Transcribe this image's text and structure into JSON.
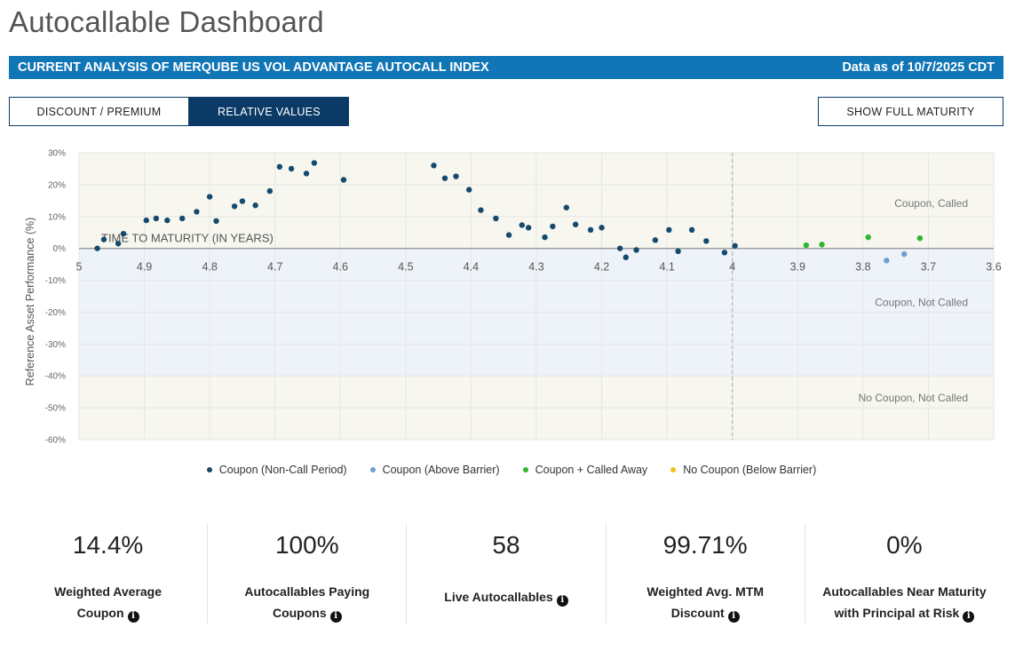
{
  "page": {
    "title": "Autocallable Dashboard",
    "banner_left": "CURRENT ANALYSIS OF MERQUBE US VOL ADVANTAGE AUTOCALL INDEX",
    "banner_right": "Data as of 10/7/2025 CDT"
  },
  "toolbar": {
    "discount_label": "DISCOUNT / PREMIUM",
    "relative_label": "RELATIVE VALUES",
    "full_maturity_label": "SHOW FULL MATURITY"
  },
  "colors": {
    "non_call": "#144a6e",
    "above_barrier": "#6f9fd1",
    "called_away": "#2db82d",
    "below_barrier": "#f0c419",
    "band_top": "#f7f6ef",
    "band_mid": "#edf3f8",
    "band_low": "#f7f6ef",
    "banner": "#1176b6"
  },
  "chart_data": {
    "type": "scatter",
    "title": "",
    "xlabel": "TIME TO MATURITY (IN YEARS)",
    "ylabel": "Reference Asset Performance (%)",
    "xlim": [
      5,
      3.6
    ],
    "ylim": [
      -60,
      30
    ],
    "x_ticks": [
      "5",
      "4.9",
      "4.8",
      "4.7",
      "4.6",
      "4.5",
      "4.4",
      "4.3",
      "4.2",
      "4.1",
      "4",
      "3.9",
      "3.8",
      "3.7",
      "3.6"
    ],
    "x_tick_values": [
      5,
      4.9,
      4.8,
      4.7,
      4.6,
      4.5,
      4.4,
      4.3,
      4.2,
      4.1,
      4,
      3.9,
      3.8,
      3.7,
      3.6
    ],
    "y_ticks": [
      "30%",
      "20%",
      "10%",
      "0%",
      "-10%",
      "-20%",
      "-30%",
      "-40%",
      "-50%",
      "-60%"
    ],
    "y_tick_values": [
      30,
      20,
      10,
      0,
      -10,
      -20,
      -30,
      -40,
      -50,
      -60
    ],
    "vline_x": 4,
    "zones": [
      {
        "label": "Coupon, Called",
        "from": 0,
        "to": 30,
        "color": "band_top"
      },
      {
        "label": "Coupon, Not Called",
        "from": -40,
        "to": 0,
        "color": "band_mid"
      },
      {
        "label": "No Coupon, Not Called",
        "from": -60,
        "to": -40,
        "color": "band_low"
      }
    ],
    "series": [
      {
        "name": "Coupon (Non-Call Period)",
        "color_key": "non_call",
        "points": [
          [
            4.972,
            0
          ],
          [
            4.962,
            2.8
          ],
          [
            4.94,
            1.5
          ],
          [
            4.932,
            4.6
          ],
          [
            4.897,
            8.8
          ],
          [
            4.882,
            9.4
          ],
          [
            4.865,
            8.8
          ],
          [
            4.842,
            9.4
          ],
          [
            4.82,
            11.5
          ],
          [
            4.8,
            16.2
          ],
          [
            4.79,
            8.6
          ],
          [
            4.762,
            13.2
          ],
          [
            4.75,
            14.8
          ],
          [
            4.73,
            13.5
          ],
          [
            4.708,
            18
          ],
          [
            4.693,
            25.6
          ],
          [
            4.675,
            25
          ],
          [
            4.652,
            23.5
          ],
          [
            4.64,
            26.8
          ],
          [
            4.595,
            21.5
          ],
          [
            4.457,
            26
          ],
          [
            4.44,
            22
          ],
          [
            4.423,
            22.6
          ],
          [
            4.403,
            18.4
          ],
          [
            4.385,
            12
          ],
          [
            4.362,
            9.4
          ],
          [
            4.342,
            4.2
          ],
          [
            4.322,
            7.3
          ],
          [
            4.312,
            6.5
          ],
          [
            4.287,
            3.5
          ],
          [
            4.275,
            6.9
          ],
          [
            4.254,
            12.8
          ],
          [
            4.24,
            7.5
          ],
          [
            4.217,
            5.8
          ],
          [
            4.2,
            6.5
          ],
          [
            4.172,
            0
          ],
          [
            4.163,
            -2.8
          ],
          [
            4.147,
            -0.5
          ],
          [
            4.118,
            2.6
          ],
          [
            4.097,
            5.8
          ],
          [
            4.083,
            -0.9
          ],
          [
            4.062,
            5.8
          ],
          [
            4.04,
            2.3
          ],
          [
            4.012,
            -1.3
          ],
          [
            3.996,
            0.8
          ]
        ]
      },
      {
        "name": "Coupon (Above Barrier)",
        "color_key": "above_barrier",
        "points": [
          [
            3.764,
            -3.8
          ],
          [
            3.737,
            -1.8
          ]
        ]
      },
      {
        "name": "Coupon + Called Away",
        "color_key": "called_away",
        "points": [
          [
            3.887,
            1
          ],
          [
            3.863,
            1.2
          ],
          [
            3.792,
            3.5
          ],
          [
            3.713,
            3.2
          ]
        ]
      },
      {
        "name": "No Coupon (Below Barrier)",
        "color_key": "below_barrier",
        "points": []
      }
    ]
  },
  "stats": [
    {
      "value": "14.4%",
      "label_line1": "Weighted Average",
      "label_line2": "Coupon"
    },
    {
      "value": "100%",
      "label_line1": "Autocallables Paying",
      "label_line2": "Coupons"
    },
    {
      "value": "58",
      "label_line1": "Live Autocallables",
      "label_line2": ""
    },
    {
      "value": "99.71%",
      "label_line1": "Weighted Avg. MTM",
      "label_line2": "Discount"
    },
    {
      "value": "0%",
      "label_line1": "Autocallables Near Maturity",
      "label_line2": "with Principal at Risk"
    }
  ],
  "info_icon": "i"
}
